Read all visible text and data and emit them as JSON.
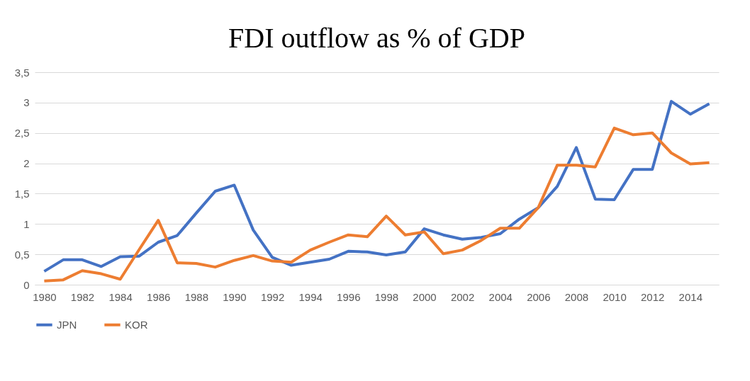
{
  "chart_data": {
    "type": "line",
    "title": "FDI outflow as % of GDP",
    "categories": [
      "1980",
      null,
      "1982",
      null,
      "1984",
      null,
      "1986",
      null,
      "1988",
      null,
      "1990",
      null,
      "1992",
      null,
      "1994",
      null,
      "1996",
      null,
      "1998",
      null,
      "2000",
      null,
      "2002",
      null,
      "2004",
      null,
      "2006",
      null,
      "2008",
      null,
      "2010",
      null,
      "2012",
      null,
      "2014",
      null
    ],
    "series": [
      {
        "name": "JPN",
        "color": "#4472c4",
        "values": [
          0.22,
          0.41,
          0.41,
          0.3,
          0.46,
          0.47,
          0.7,
          0.81,
          1.18,
          1.54,
          1.64,
          0.9,
          0.45,
          0.32,
          0.37,
          0.42,
          0.55,
          0.54,
          0.49,
          0.54,
          0.92,
          0.82,
          0.75,
          0.78,
          0.84,
          1.08,
          1.27,
          1.62,
          2.26,
          1.41,
          1.4,
          1.9,
          1.9,
          3.02,
          2.81,
          2.98
        ]
      },
      {
        "name": "KOR",
        "color": "#ed7d31",
        "values": [
          0.06,
          0.08,
          0.23,
          0.18,
          0.09,
          0.58,
          1.06,
          0.36,
          0.35,
          0.29,
          0.4,
          0.48,
          0.39,
          0.37,
          0.57,
          0.7,
          0.82,
          0.79,
          1.13,
          0.82,
          0.87,
          0.51,
          0.57,
          0.73,
          0.93,
          0.93,
          1.27,
          1.97,
          1.97,
          1.94,
          2.58,
          2.47,
          2.5,
          2.17,
          1.99,
          2.01
        ]
      }
    ],
    "ylim": [
      0,
      3.5
    ],
    "yticks": [
      0,
      {
        "value": 0.5,
        "label": "0,5"
      },
      1,
      {
        "value": 1.5,
        "label": "1,5"
      },
      2,
      {
        "value": 2.5,
        "label": "2,5"
      },
      3,
      {
        "value": 3.5,
        "label": "3,5"
      }
    ],
    "grid": "y",
    "legend": "bottom",
    "marker": "none",
    "line_style": "solid"
  }
}
